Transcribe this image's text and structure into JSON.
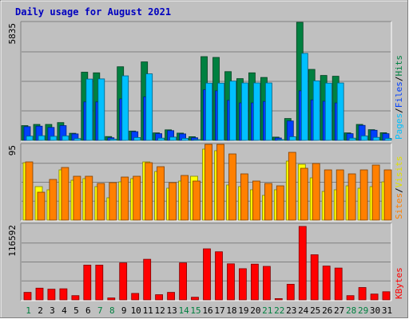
{
  "chart_data": {
    "type": "bar",
    "title": "Daily usage for August 2021",
    "categories": [
      "1",
      "2",
      "3",
      "4",
      "5",
      "6",
      "7",
      "8",
      "9",
      "10",
      "11",
      "12",
      "13",
      "14",
      "15",
      "16",
      "17",
      "18",
      "19",
      "20",
      "21",
      "22",
      "23",
      "24",
      "25",
      "26",
      "27",
      "28",
      "29",
      "30",
      "31"
    ],
    "weekend_days": [
      "1",
      "7",
      "8",
      "14",
      "15",
      "21",
      "22",
      "28",
      "29"
    ],
    "panels": [
      {
        "name": "hits",
        "max_label": "5835",
        "ylim": [
          0,
          5835
        ],
        "right_label": [
          "Pages",
          "Files",
          "Hits"
        ],
        "series": [
          {
            "name": "Hits",
            "color": "#008040",
            "values": [
              730,
              790,
              790,
              880,
              350,
              3370,
              3340,
              190,
              3640,
              460,
              3880,
              370,
              520,
              360,
              180,
              4140,
              4100,
              3400,
              3050,
              3340,
              3110,
              160,
              1080,
              5835,
              3510,
              3210,
              3170,
              370,
              790,
              530,
              380
            ]
          },
          {
            "name": "Files",
            "color": "#0040ff",
            "values": [
              680,
              700,
              640,
              730,
              320,
              1900,
              1900,
              130,
              2050,
              430,
              2150,
              330,
              480,
              320,
              130,
              2500,
              2450,
              1980,
              1850,
              1850,
              1920,
              120,
              960,
              2450,
              2000,
              1930,
              1850,
              330,
              740,
              500,
              330
            ]
          },
          {
            "name": "Pages",
            "color": "#00c0ff",
            "values": [
              210,
              230,
              200,
              220,
              90,
              3030,
              3040,
              60,
              3190,
              140,
              3290,
              110,
              160,
              100,
              40,
              2830,
              2830,
              2930,
              2840,
              2840,
              2840,
              40,
              180,
              4300,
              2940,
              2830,
              2840,
              110,
              220,
              150,
              100
            ]
          }
        ]
      },
      {
        "name": "visits",
        "max_label": "95",
        "ylim": [
          0,
          95
        ],
        "right_label": [
          "Sites",
          "Visits"
        ],
        "series": [
          {
            "name": "Visits",
            "color": "#ffff00",
            "values": [
              72,
              42,
              38,
              63,
              50,
              52,
              42,
              28,
              48,
              52,
              73,
              61,
              40,
              49,
              55,
              89,
              87,
              44,
              42,
              38,
              31,
              38,
              74,
              70,
              53,
              36,
              38,
              43,
              40,
              42,
              48
            ]
          },
          {
            "name": "Sites",
            "color": "#ff8000",
            "values": [
              73,
              35,
              51,
              66,
              55,
              55,
              46,
              47,
              54,
              55,
              72,
              67,
              47,
              56,
              49,
              95,
              95,
              83,
              58,
              49,
              46,
              43,
              85,
              65,
              71,
              63,
              63,
              58,
              63,
              69,
              63
            ]
          }
        ]
      },
      {
        "name": "kbytes",
        "max_label": "116592",
        "ylim": [
          0,
          116592
        ],
        "right_label": [
          "KBytes"
        ],
        "series": [
          {
            "name": "KBytes",
            "color": "#ff0000",
            "values": [
              11500,
              18000,
              16500,
              17000,
              6500,
              53500,
              53500,
              3000,
              57000,
              10000,
              62500,
              8000,
              11500,
              57000,
              4000,
              78500,
              74000,
              55500,
              48000,
              55000,
              51500,
              2000,
              24000,
              113000,
              69500,
              52000,
              49000,
              6500,
              19000,
              9000,
              12500
            ]
          }
        ]
      }
    ]
  }
}
